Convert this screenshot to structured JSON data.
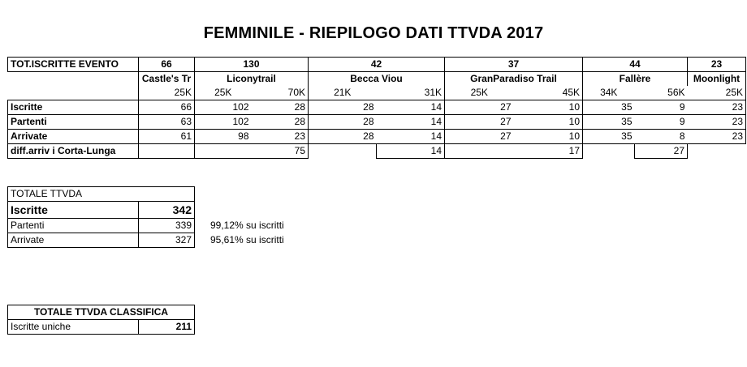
{
  "title": "FEMMINILE - RIEPILOGO DATI TTVDA 2017",
  "main": {
    "row_label": "TOT.ISCRITTE EVENTO",
    "event_totals": [
      "66",
      "130",
      "42",
      "37",
      "44",
      "23"
    ],
    "events": [
      "Castle's Tr",
      "Liconytrail",
      "Becca Viou",
      "GranParadiso Trail",
      "Fallère",
      "Moonlight"
    ],
    "distances": [
      "25K",
      "25K",
      "70K",
      "21K",
      "31K",
      "25K",
      "45K",
      "34K",
      "56K",
      "25K"
    ],
    "rows": [
      {
        "label": "Iscritte",
        "values": [
          "66",
          "102",
          "28",
          "28",
          "14",
          "27",
          "10",
          "35",
          "9",
          "23"
        ]
      },
      {
        "label": "Partenti",
        "values": [
          "63",
          "102",
          "28",
          "28",
          "14",
          "27",
          "10",
          "35",
          "9",
          "23"
        ]
      },
      {
        "label": "Arrivate",
        "values": [
          "61",
          "98",
          "23",
          "28",
          "14",
          "27",
          "10",
          "35",
          "8",
          "23"
        ]
      }
    ],
    "diff": {
      "label": "diff.arriv i Corta-Lunga",
      "liconytrail": "75",
      "becca_viou": "14",
      "granparadiso": "17",
      "fallere": "27"
    }
  },
  "totale": {
    "header": "TOTALE TTVDA",
    "iscritte_label": "Iscritte",
    "iscritte_value": "342",
    "partenti_label": "Partenti",
    "partenti_value": "339",
    "partenti_pct": "99,12%",
    "arrivate_label": "Arrivate",
    "arrivate_value": "327",
    "arrivate_pct": "95,61%",
    "pct_suffix": "su iscritti"
  },
  "classifica": {
    "header": "TOTALE TTVDA CLASSIFICA",
    "label": "Iscritte uniche",
    "value": "211"
  }
}
